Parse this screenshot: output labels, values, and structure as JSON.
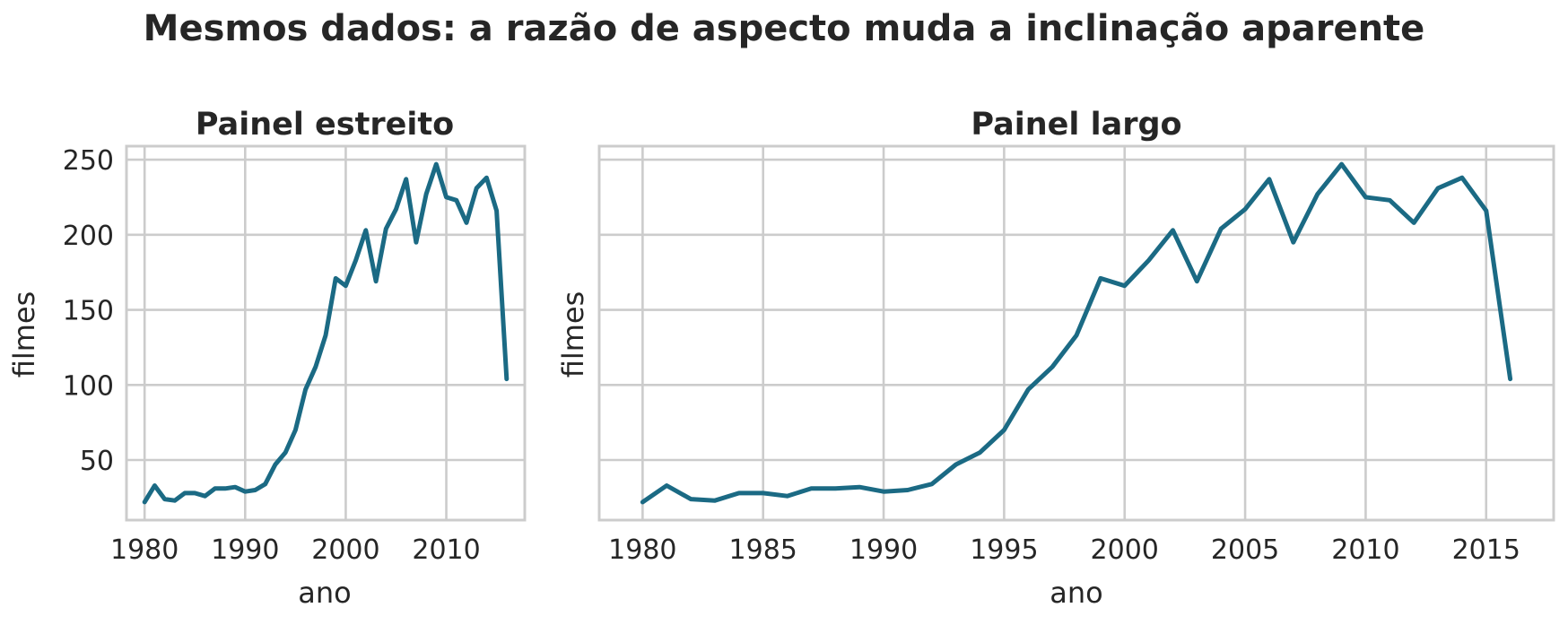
{
  "title": "Mesmos dados: a razão de aspecto muda a inclinação aparente",
  "colors": {
    "line": "#1b6a84",
    "grid": "#cccccc",
    "text": "#262626"
  },
  "chart_data": [
    {
      "type": "line",
      "title": "Painel estreito",
      "xlabel": "ano",
      "ylabel": "filmes",
      "x": [
        1980,
        1981,
        1982,
        1983,
        1984,
        1985,
        1986,
        1987,
        1988,
        1989,
        1990,
        1991,
        1992,
        1993,
        1994,
        1995,
        1996,
        1997,
        1998,
        1999,
        2000,
        2001,
        2002,
        2003,
        2004,
        2005,
        2006,
        2007,
        2008,
        2009,
        2010,
        2011,
        2012,
        2013,
        2014,
        2015,
        2016
      ],
      "series": [
        {
          "values": [
            22,
            33,
            24,
            23,
            28,
            28,
            26,
            31,
            31,
            32,
            29,
            30,
            34,
            47,
            55,
            70,
            97,
            112,
            133,
            171,
            166,
            183,
            203,
            169,
            204,
            217,
            237,
            195,
            227,
            247,
            225,
            223,
            208,
            231,
            238,
            216,
            104
          ]
        }
      ],
      "xticks": [
        "1980",
        "1990",
        "2000",
        "2010"
      ],
      "yticks": [
        "50",
        "100",
        "150",
        "200",
        "250"
      ],
      "xlim": [
        1978.2,
        2017.8
      ],
      "ylim": [
        10,
        259
      ],
      "grid": true
    },
    {
      "type": "line",
      "title": "Painel largo",
      "xlabel": "ano",
      "ylabel": "filmes",
      "x": [
        1980,
        1981,
        1982,
        1983,
        1984,
        1985,
        1986,
        1987,
        1988,
        1989,
        1990,
        1991,
        1992,
        1993,
        1994,
        1995,
        1996,
        1997,
        1998,
        1999,
        2000,
        2001,
        2002,
        2003,
        2004,
        2005,
        2006,
        2007,
        2008,
        2009,
        2010,
        2011,
        2012,
        2013,
        2014,
        2015,
        2016
      ],
      "series": [
        {
          "values": [
            22,
            33,
            24,
            23,
            28,
            28,
            26,
            31,
            31,
            32,
            29,
            30,
            34,
            47,
            55,
            70,
            97,
            112,
            133,
            171,
            166,
            183,
            203,
            169,
            204,
            217,
            237,
            195,
            227,
            247,
            225,
            223,
            208,
            231,
            238,
            216,
            104
          ]
        }
      ],
      "xticks": [
        "1980",
        "1985",
        "1990",
        "1995",
        "2000",
        "2005",
        "2010",
        "2015"
      ],
      "yticks": [],
      "xlim": [
        1978.2,
        2017.8
      ],
      "ylim": [
        10,
        259
      ],
      "grid": true
    }
  ]
}
